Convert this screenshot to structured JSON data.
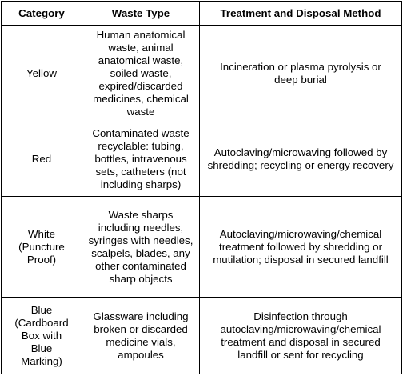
{
  "table": {
    "headers": {
      "category": "Category",
      "waste_type": "Waste Type",
      "method": "Treatment and Disposal Method"
    },
    "rows": [
      {
        "category": "Yellow",
        "waste_type": "Human anatomical waste, animal anatomical waste, soiled waste, expired/discarded medicines, chemical waste",
        "method": "Incineration or plasma pyrolysis or deep burial"
      },
      {
        "category": "Red",
        "waste_type": "Contaminated waste recyclable: tubing, bottles, intravenous sets, catheters (not including sharps)",
        "method": "Autoclaving/microwaving followed by shredding; recycling or energy recovery"
      },
      {
        "category": "White (Puncture Proof)",
        "waste_type": "Waste sharps including needles, syringes with needles, scalpels, blades, any other contaminated sharp objects",
        "method": "Autoclaving/microwaving/chemical treatment followed by shredding or mutilation; disposal in secured landfill"
      },
      {
        "category": "Blue (Cardboard Box with Blue Marking)",
        "waste_type": "Glassware including broken or discarded medicine vials, ampoules",
        "method": "Disinfection through autoclaving/microwaving/chemical treatment and disposal in secured landfill or sent for recycling"
      }
    ]
  }
}
